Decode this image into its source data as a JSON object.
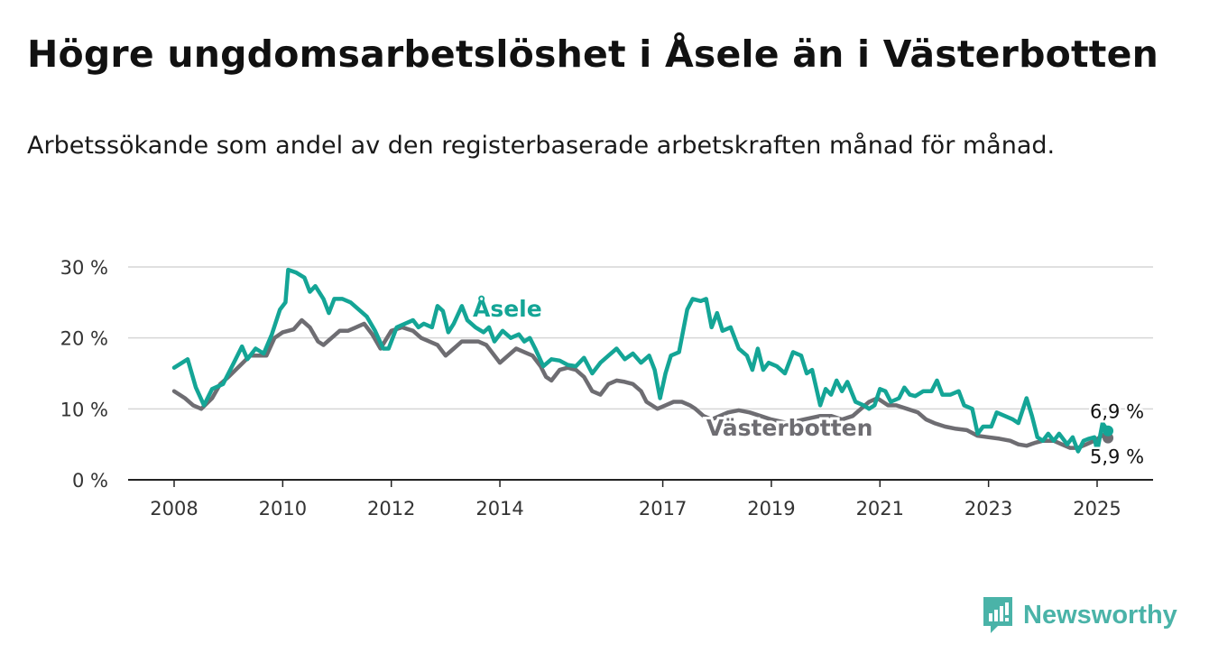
{
  "header": {
    "title": "Högre ungdomsarbetslöshet i Åsele än i Västerbotten",
    "subtitle": "Arbetssökande som andel av den registerbaserade arbetskraften månad för månad."
  },
  "brand": {
    "name": "Newsworthy",
    "icon": "newsworthy-logo-icon",
    "color": "#4ab3a8"
  },
  "chart_data": {
    "type": "line",
    "xlabel": "",
    "ylabel": "",
    "xlim": [
      2008,
      2025.5
    ],
    "ylim": [
      0,
      30
    ],
    "x_ticks": [
      {
        "value": 2008,
        "label": "2008"
      },
      {
        "value": 2010,
        "label": "2010"
      },
      {
        "value": 2012,
        "label": "2012"
      },
      {
        "value": 2014,
        "label": "2014"
      },
      {
        "value": 2017,
        "label": "2017"
      },
      {
        "value": 2019,
        "label": "2019"
      },
      {
        "value": 2021,
        "label": "2021"
      },
      {
        "value": 2023,
        "label": "2023"
      },
      {
        "value": 2025,
        "label": "2025"
      }
    ],
    "y_ticks": [
      {
        "value": 0,
        "label": "0 %"
      },
      {
        "value": 10,
        "label": "10 %"
      },
      {
        "value": 20,
        "label": "20 %"
      },
      {
        "value": 30,
        "label": "30 %"
      }
    ],
    "grid": true,
    "series": [
      {
        "name": "Åsele",
        "color": "#14a596",
        "label_at": [
          2013.5,
          23
        ],
        "end_label": "6,9 %",
        "points": [
          [
            2008.0,
            15.8
          ],
          [
            2008.25,
            17.0
          ],
          [
            2008.4,
            13.0
          ],
          [
            2008.55,
            10.5
          ],
          [
            2008.7,
            12.8
          ],
          [
            2008.9,
            13.5
          ],
          [
            2009.1,
            16.5
          ],
          [
            2009.25,
            18.8
          ],
          [
            2009.35,
            17.0
          ],
          [
            2009.5,
            18.5
          ],
          [
            2009.65,
            17.8
          ],
          [
            2009.8,
            20.5
          ],
          [
            2009.95,
            24.0
          ],
          [
            2010.05,
            25.0
          ],
          [
            2010.1,
            29.6
          ],
          [
            2010.25,
            29.2
          ],
          [
            2010.4,
            28.5
          ],
          [
            2010.5,
            26.5
          ],
          [
            2010.6,
            27.3
          ],
          [
            2010.75,
            25.5
          ],
          [
            2010.85,
            23.5
          ],
          [
            2010.95,
            25.5
          ],
          [
            2011.1,
            25.5
          ],
          [
            2011.25,
            25.0
          ],
          [
            2011.4,
            24.0
          ],
          [
            2011.55,
            23.0
          ],
          [
            2011.7,
            21.0
          ],
          [
            2011.85,
            18.5
          ],
          [
            2011.95,
            18.5
          ],
          [
            2012.1,
            21.5
          ],
          [
            2012.25,
            22.0
          ],
          [
            2012.4,
            22.5
          ],
          [
            2012.5,
            21.5
          ],
          [
            2012.6,
            22.0
          ],
          [
            2012.75,
            21.5
          ],
          [
            2012.85,
            24.5
          ],
          [
            2012.95,
            23.8
          ],
          [
            2013.05,
            20.8
          ],
          [
            2013.15,
            22.0
          ],
          [
            2013.3,
            24.5
          ],
          [
            2013.4,
            22.5
          ],
          [
            2013.55,
            21.5
          ],
          [
            2013.7,
            20.8
          ],
          [
            2013.8,
            21.5
          ],
          [
            2013.9,
            19.5
          ],
          [
            2014.05,
            21.0
          ],
          [
            2014.2,
            20.0
          ],
          [
            2014.35,
            20.5
          ],
          [
            2014.45,
            19.5
          ],
          [
            2014.55,
            20.0
          ],
          [
            2014.65,
            18.5
          ],
          [
            2014.8,
            16.0
          ],
          [
            2014.95,
            17.0
          ],
          [
            2015.1,
            16.8
          ],
          [
            2015.25,
            16.2
          ],
          [
            2015.4,
            16.0
          ],
          [
            2015.55,
            17.2
          ],
          [
            2015.7,
            15.0
          ],
          [
            2015.85,
            16.5
          ],
          [
            2016.0,
            17.5
          ],
          [
            2016.15,
            18.5
          ],
          [
            2016.3,
            17.0
          ],
          [
            2016.45,
            17.8
          ],
          [
            2016.6,
            16.5
          ],
          [
            2016.75,
            17.5
          ],
          [
            2016.85,
            15.5
          ],
          [
            2016.95,
            11.5
          ],
          [
            2017.05,
            15.0
          ],
          [
            2017.15,
            17.5
          ],
          [
            2017.3,
            18.0
          ],
          [
            2017.45,
            24.0
          ],
          [
            2017.55,
            25.5
          ],
          [
            2017.7,
            25.2
          ],
          [
            2017.8,
            25.5
          ],
          [
            2017.9,
            21.5
          ],
          [
            2018.0,
            23.5
          ],
          [
            2018.1,
            21.0
          ],
          [
            2018.25,
            21.5
          ],
          [
            2018.4,
            18.5
          ],
          [
            2018.55,
            17.5
          ],
          [
            2018.65,
            15.5
          ],
          [
            2018.75,
            18.5
          ],
          [
            2018.85,
            15.5
          ],
          [
            2018.95,
            16.5
          ],
          [
            2019.1,
            16.0
          ],
          [
            2019.25,
            15.0
          ],
          [
            2019.4,
            18.0
          ],
          [
            2019.55,
            17.5
          ],
          [
            2019.65,
            15.0
          ],
          [
            2019.75,
            15.5
          ],
          [
            2019.9,
            10.5
          ],
          [
            2020.0,
            12.8
          ],
          [
            2020.1,
            12.0
          ],
          [
            2020.2,
            14.0
          ],
          [
            2020.3,
            12.5
          ],
          [
            2020.4,
            13.8
          ],
          [
            2020.55,
            11.0
          ],
          [
            2020.7,
            10.5
          ],
          [
            2020.8,
            10.0
          ],
          [
            2020.9,
            10.5
          ],
          [
            2021.0,
            12.8
          ],
          [
            2021.1,
            12.5
          ],
          [
            2021.2,
            11.0
          ],
          [
            2021.35,
            11.5
          ],
          [
            2021.45,
            13.0
          ],
          [
            2021.55,
            12.0
          ],
          [
            2021.65,
            11.8
          ],
          [
            2021.8,
            12.5
          ],
          [
            2021.95,
            12.5
          ],
          [
            2022.05,
            14.0
          ],
          [
            2022.15,
            12.0
          ],
          [
            2022.3,
            12.0
          ],
          [
            2022.45,
            12.5
          ],
          [
            2022.55,
            10.5
          ],
          [
            2022.7,
            10.0
          ],
          [
            2022.8,
            6.5
          ],
          [
            2022.9,
            7.5
          ],
          [
            2023.05,
            7.5
          ],
          [
            2023.15,
            9.5
          ],
          [
            2023.3,
            9.0
          ],
          [
            2023.45,
            8.5
          ],
          [
            2023.55,
            8.0
          ],
          [
            2023.7,
            11.5
          ],
          [
            2023.8,
            9.0
          ],
          [
            2023.9,
            6.0
          ],
          [
            2024.0,
            5.5
          ],
          [
            2024.1,
            6.5
          ],
          [
            2024.2,
            5.5
          ],
          [
            2024.3,
            6.5
          ],
          [
            2024.45,
            5.0
          ],
          [
            2024.55,
            6.0
          ],
          [
            2024.65,
            4.0
          ],
          [
            2024.75,
            5.5
          ],
          [
            2024.85,
            5.8
          ],
          [
            2024.95,
            6.0
          ],
          [
            2025.0,
            4.0
          ],
          [
            2025.1,
            8.0
          ],
          [
            2025.2,
            6.9
          ]
        ]
      },
      {
        "name": "Västerbotten",
        "color": "#6e6d72",
        "label_at": [
          2017.8,
          6.2
        ],
        "end_label": "5,9 %",
        "points": [
          [
            2008.0,
            12.5
          ],
          [
            2008.2,
            11.5
          ],
          [
            2008.35,
            10.5
          ],
          [
            2008.5,
            10.0
          ],
          [
            2008.7,
            11.5
          ],
          [
            2008.85,
            13.5
          ],
          [
            2009.0,
            14.5
          ],
          [
            2009.2,
            16.0
          ],
          [
            2009.4,
            17.5
          ],
          [
            2009.55,
            17.5
          ],
          [
            2009.7,
            17.5
          ],
          [
            2009.85,
            20.0
          ],
          [
            2010.0,
            20.8
          ],
          [
            2010.2,
            21.2
          ],
          [
            2010.35,
            22.5
          ],
          [
            2010.5,
            21.5
          ],
          [
            2010.65,
            19.5
          ],
          [
            2010.75,
            19.0
          ],
          [
            2010.9,
            20.0
          ],
          [
            2011.05,
            21.0
          ],
          [
            2011.2,
            21.0
          ],
          [
            2011.35,
            21.5
          ],
          [
            2011.5,
            22.0
          ],
          [
            2011.65,
            20.5
          ],
          [
            2011.8,
            18.5
          ],
          [
            2012.0,
            21.0
          ],
          [
            2012.2,
            21.5
          ],
          [
            2012.4,
            21.0
          ],
          [
            2012.55,
            20.0
          ],
          [
            2012.7,
            19.5
          ],
          [
            2012.85,
            19.0
          ],
          [
            2013.0,
            17.5
          ],
          [
            2013.15,
            18.5
          ],
          [
            2013.3,
            19.5
          ],
          [
            2013.45,
            19.5
          ],
          [
            2013.6,
            19.5
          ],
          [
            2013.75,
            19.0
          ],
          [
            2013.9,
            17.5
          ],
          [
            2014.0,
            16.5
          ],
          [
            2014.15,
            17.5
          ],
          [
            2014.3,
            18.5
          ],
          [
            2014.45,
            18.0
          ],
          [
            2014.6,
            17.5
          ],
          [
            2014.75,
            16.0
          ],
          [
            2014.85,
            14.5
          ],
          [
            2014.95,
            14.0
          ],
          [
            2015.1,
            15.5
          ],
          [
            2015.25,
            15.8
          ],
          [
            2015.4,
            15.5
          ],
          [
            2015.55,
            14.5
          ],
          [
            2015.7,
            12.5
          ],
          [
            2015.85,
            12.0
          ],
          [
            2016.0,
            13.5
          ],
          [
            2016.15,
            14.0
          ],
          [
            2016.3,
            13.8
          ],
          [
            2016.45,
            13.5
          ],
          [
            2016.6,
            12.5
          ],
          [
            2016.7,
            11.0
          ],
          [
            2016.8,
            10.5
          ],
          [
            2016.9,
            10.0
          ],
          [
            2017.05,
            10.5
          ],
          [
            2017.2,
            11.0
          ],
          [
            2017.35,
            11.0
          ],
          [
            2017.5,
            10.5
          ],
          [
            2017.6,
            10.0
          ],
          [
            2017.75,
            9.0
          ],
          [
            2017.9,
            8.5
          ],
          [
            2018.05,
            9.0
          ],
          [
            2018.2,
            9.5
          ],
          [
            2018.4,
            9.8
          ],
          [
            2018.6,
            9.5
          ],
          [
            2018.8,
            9.0
          ],
          [
            2019.0,
            8.5
          ],
          [
            2019.3,
            8.0
          ],
          [
            2019.6,
            8.5
          ],
          [
            2019.9,
            9.0
          ],
          [
            2020.1,
            9.0
          ],
          [
            2020.3,
            8.5
          ],
          [
            2020.5,
            9.0
          ],
          [
            2020.65,
            10.0
          ],
          [
            2020.8,
            11.0
          ],
          [
            2020.95,
            11.5
          ],
          [
            2021.15,
            10.5
          ],
          [
            2021.3,
            10.5
          ],
          [
            2021.5,
            10.0
          ],
          [
            2021.7,
            9.5
          ],
          [
            2021.85,
            8.5
          ],
          [
            2022.0,
            8.0
          ],
          [
            2022.2,
            7.5
          ],
          [
            2022.4,
            7.2
          ],
          [
            2022.6,
            7.0
          ],
          [
            2022.8,
            6.2
          ],
          [
            2023.0,
            6.0
          ],
          [
            2023.2,
            5.8
          ],
          [
            2023.4,
            5.5
          ],
          [
            2023.55,
            5.0
          ],
          [
            2023.7,
            4.8
          ],
          [
            2023.85,
            5.2
          ],
          [
            2024.0,
            5.5
          ],
          [
            2024.2,
            5.5
          ],
          [
            2024.35,
            5.0
          ],
          [
            2024.5,
            4.5
          ],
          [
            2024.65,
            4.5
          ],
          [
            2024.8,
            5.0
          ],
          [
            2024.95,
            5.5
          ],
          [
            2025.05,
            6.0
          ],
          [
            2025.15,
            6.5
          ],
          [
            2025.2,
            5.9
          ]
        ]
      }
    ]
  }
}
